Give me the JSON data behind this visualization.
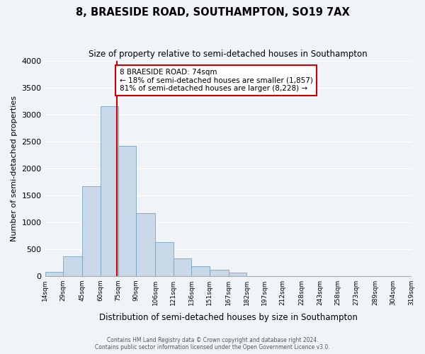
{
  "title": "8, BRAESIDE ROAD, SOUTHAMPTON, SO19 7AX",
  "subtitle": "Size of property relative to semi-detached houses in Southampton",
  "xlabel": "Distribution of semi-detached houses by size in Southampton",
  "ylabel": "Number of semi-detached properties",
  "footer1": "Contains HM Land Registry data © Crown copyright and database right 2024.",
  "footer2": "Contains public sector information licensed under the Open Government Licence v3.0.",
  "bin_labels": [
    "14sqm",
    "29sqm",
    "45sqm",
    "60sqm",
    "75sqm",
    "90sqm",
    "106sqm",
    "121sqm",
    "136sqm",
    "151sqm",
    "167sqm",
    "182sqm",
    "197sqm",
    "212sqm",
    "228sqm",
    "243sqm",
    "258sqm",
    "273sqm",
    "289sqm",
    "304sqm",
    "319sqm"
  ],
  "bin_edges": [
    14,
    29,
    45,
    60,
    75,
    90,
    106,
    121,
    136,
    151,
    167,
    182,
    197,
    212,
    228,
    243,
    258,
    273,
    289,
    304,
    319
  ],
  "bar_heights": [
    70,
    360,
    1670,
    3150,
    2420,
    1160,
    630,
    330,
    185,
    110,
    55,
    0,
    0,
    0,
    0,
    0,
    0,
    0,
    0,
    0
  ],
  "bar_color": "#c8d8e8",
  "bar_edge_color": "#6699bb",
  "property_value": 74,
  "property_line_color": "#cc0000",
  "annotation_text_line1": "8 BRAESIDE ROAD: 74sqm",
  "annotation_text_line2": "← 18% of semi-detached houses are smaller (1,857)",
  "annotation_text_line3": "81% of semi-detached houses are larger (8,228) →",
  "annotation_box_color": "#ffffff",
  "annotation_box_edge": "#cc0000",
  "ylim": [
    0,
    4000
  ],
  "yticks": [
    0,
    500,
    1000,
    1500,
    2000,
    2500,
    3000,
    3500,
    4000
  ],
  "bg_color": "#f0f4f8"
}
